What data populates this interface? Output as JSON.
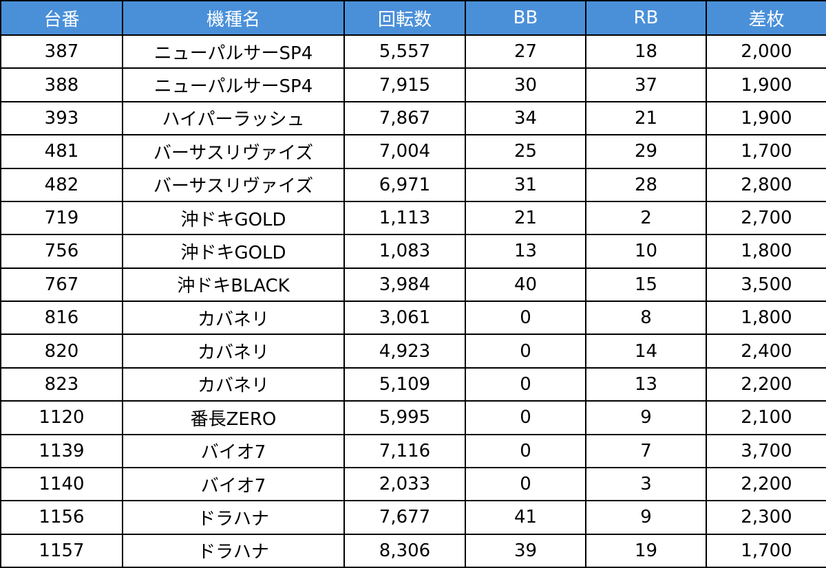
{
  "colors": {
    "header_bg": "#4a90d9",
    "header_text": "#ffffff",
    "cell_text": "#000000",
    "border": "#000000"
  },
  "table": {
    "headers": [
      "台番",
      "機種名",
      "回転数",
      "BB",
      "RB",
      "差枚"
    ],
    "rows": [
      [
        "387",
        "ニューパルサーSP4",
        "5,557",
        "27",
        "18",
        "2,000"
      ],
      [
        "388",
        "ニューパルサーSP4",
        "7,915",
        "30",
        "37",
        "1,900"
      ],
      [
        "393",
        "ハイパーラッシュ",
        "7,867",
        "34",
        "21",
        "1,900"
      ],
      [
        "481",
        "バーサスリヴァイズ",
        "7,004",
        "25",
        "29",
        "1,700"
      ],
      [
        "482",
        "バーサスリヴァイズ",
        "6,971",
        "31",
        "28",
        "2,800"
      ],
      [
        "719",
        "沖ドキGOLD",
        "1,113",
        "21",
        "2",
        "2,700"
      ],
      [
        "756",
        "沖ドキGOLD",
        "1,083",
        "13",
        "10",
        "1,800"
      ],
      [
        "767",
        "沖ドキBLACK",
        "3,984",
        "40",
        "15",
        "3,500"
      ],
      [
        "816",
        "カバネリ",
        "3,061",
        "0",
        "8",
        "1,800"
      ],
      [
        "820",
        "カバネリ",
        "4,923",
        "0",
        "14",
        "2,400"
      ],
      [
        "823",
        "カバネリ",
        "5,109",
        "0",
        "13",
        "2,200"
      ],
      [
        "1120",
        "番長ZERO",
        "5,995",
        "0",
        "9",
        "2,100"
      ],
      [
        "1139",
        "バイオ7",
        "7,116",
        "0",
        "7",
        "3,700"
      ],
      [
        "1140",
        "バイオ7",
        "2,033",
        "0",
        "3",
        "2,200"
      ],
      [
        "1156",
        "ドラハナ",
        "7,677",
        "41",
        "9",
        "2,300"
      ],
      [
        "1157",
        "ドラハナ",
        "8,306",
        "39",
        "19",
        "1,700"
      ]
    ]
  }
}
